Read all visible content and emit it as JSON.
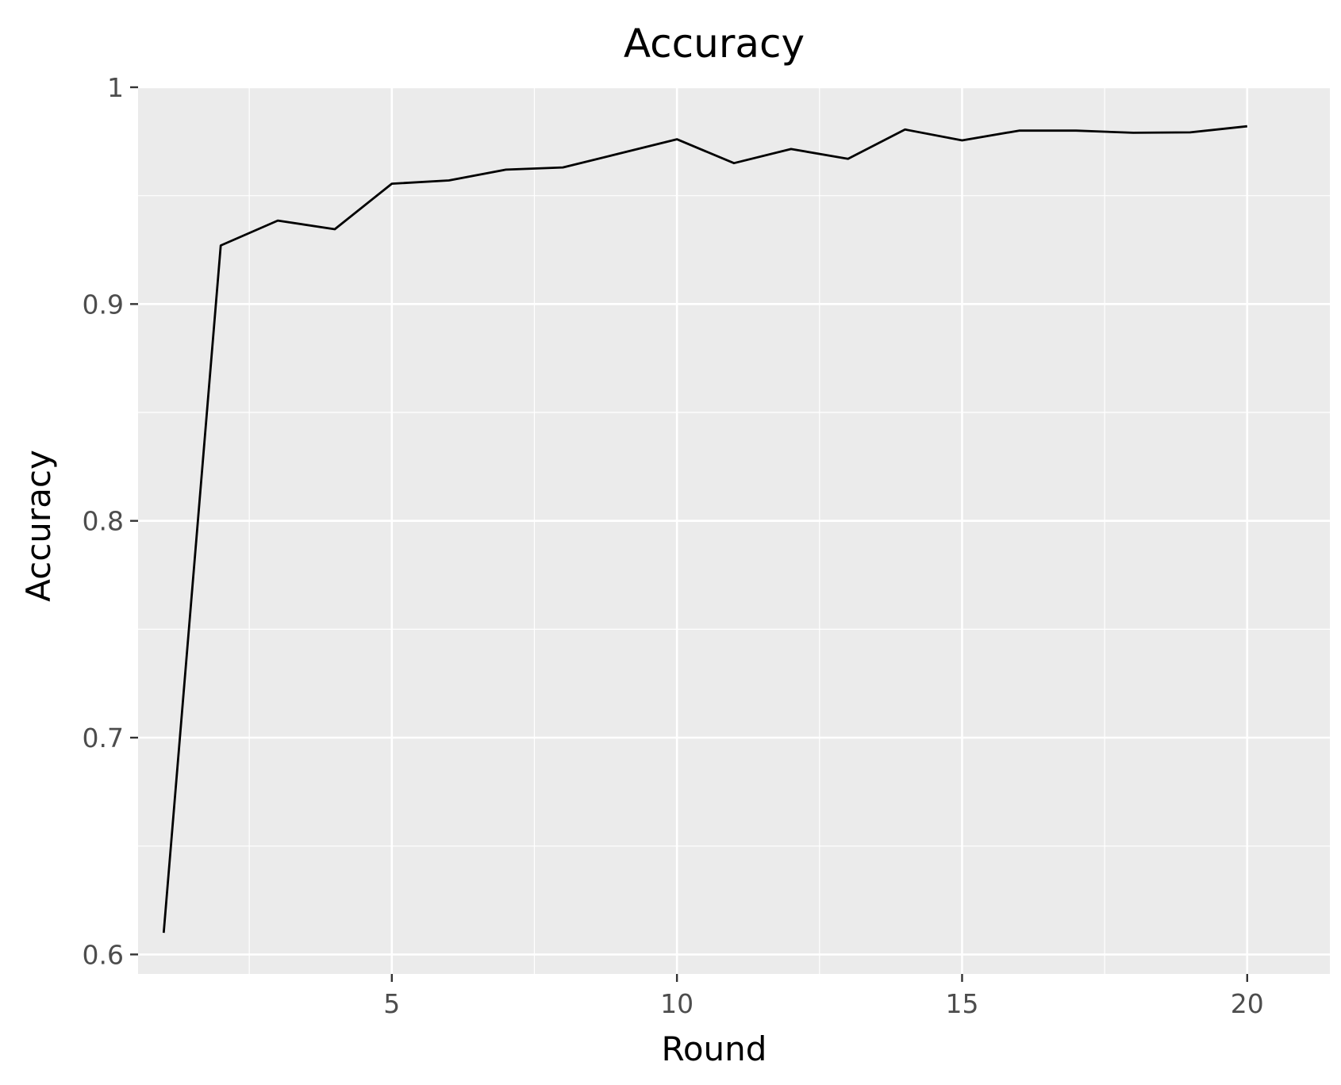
{
  "chart_data": {
    "type": "line",
    "title": "Accuracy",
    "xlabel": "Round",
    "ylabel": "Accuracy",
    "xlim": [
      0.55,
      21.45
    ],
    "ylim": [
      0.591,
      1.0
    ],
    "x_ticks": [
      5,
      10,
      15,
      20
    ],
    "x_tick_labels": [
      "5",
      "10",
      "15",
      "20"
    ],
    "y_ticks": [
      0.6,
      0.7,
      0.8,
      0.9,
      1.0
    ],
    "y_tick_labels": [
      "0.6",
      "0.7",
      "0.8",
      "0.9",
      "1"
    ],
    "grid": true,
    "legend": "none",
    "colors": {
      "panel_background": "#ebebeb",
      "grid_major": "#ffffff",
      "grid_minor": "#ffffff",
      "line": "#000000",
      "tick_label": "#4d4d4d"
    },
    "series": [
      {
        "x": [
          1,
          2,
          3,
          4,
          5,
          6,
          7,
          8,
          9,
          10,
          11,
          12,
          13,
          14,
          15,
          16,
          17,
          18,
          19,
          20
        ],
        "values": [
          0.61,
          0.927,
          0.9385,
          0.9345,
          0.9555,
          0.957,
          0.962,
          0.963,
          0.9695,
          0.976,
          0.965,
          0.9715,
          0.967,
          0.9805,
          0.9755,
          0.98,
          0.98,
          0.979,
          0.9792,
          0.982
        ]
      }
    ]
  }
}
